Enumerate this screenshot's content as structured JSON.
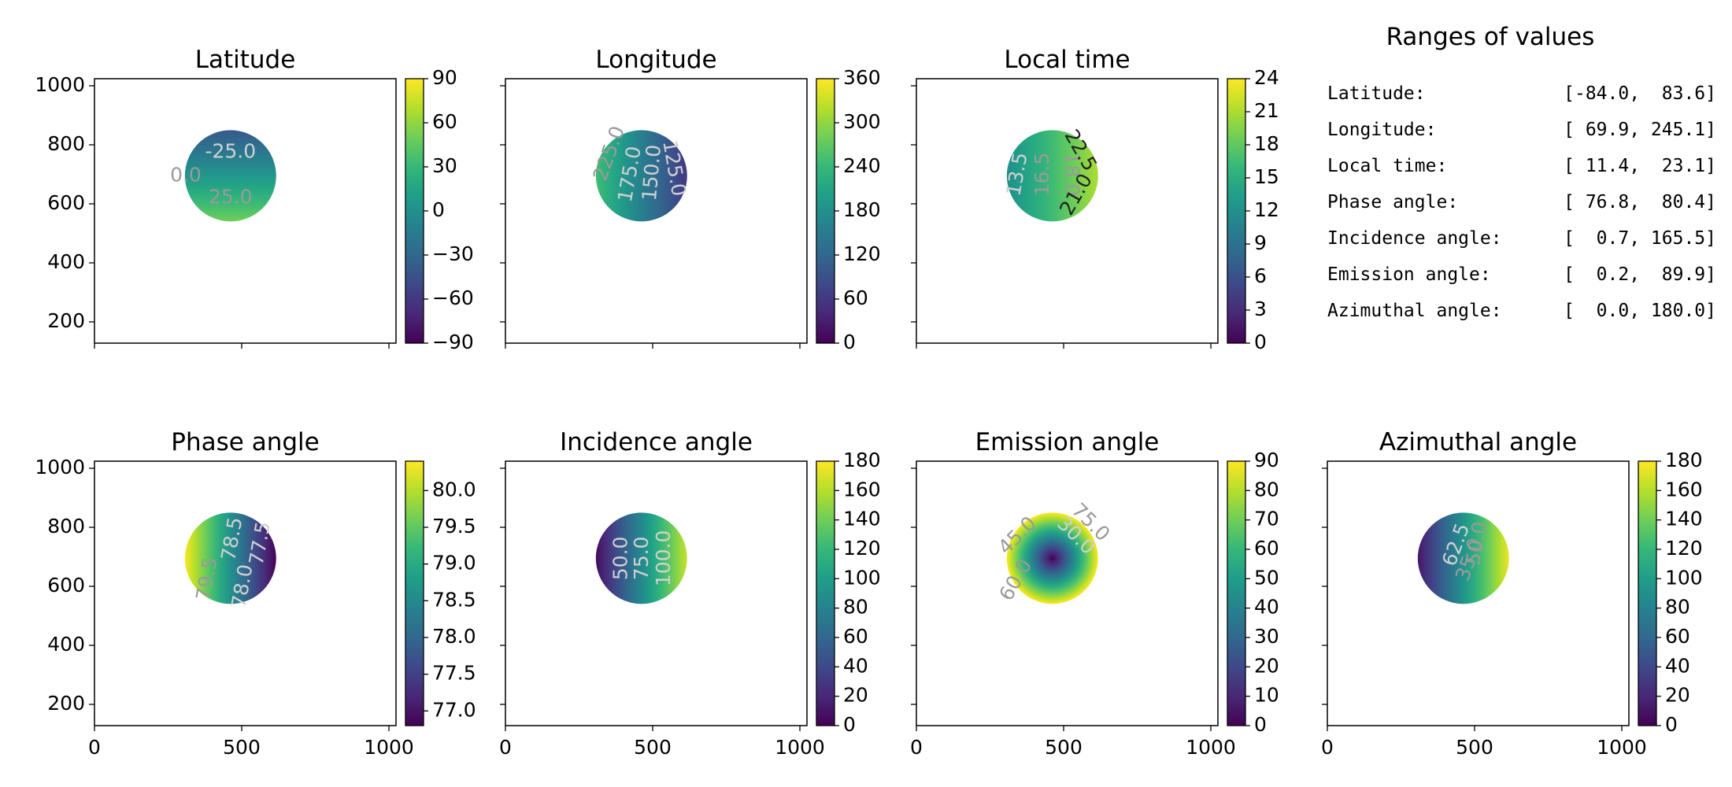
{
  "colors": {
    "viridis": [
      "#440154",
      "#482878",
      "#3e4989",
      "#31688e",
      "#26828e",
      "#1f9e89",
      "#35b779",
      "#6ece58",
      "#b5de2b",
      "#fde725"
    ],
    "contour_light": "#d0d0d0",
    "contour_mid": "#9a9a9a",
    "contour_dark": "#222222"
  },
  "chart_data": [
    {
      "type": "heatmap",
      "title": "Latitude",
      "xlim": [
        0,
        1024
      ],
      "ylim": [
        128,
        1024
      ],
      "x_ticks": [
        0,
        500,
        1000
      ],
      "show_x_tick_labels": false,
      "y_ticks": [
        200,
        400,
        600,
        800,
        1000
      ],
      "show_y_tick_labels": true,
      "disk": {
        "center": [
          462,
          695
        ],
        "radius": 155
      },
      "gradient": "vertical",
      "gradient_range": [
        -40,
        50
      ],
      "colorbar": {
        "min": -90,
        "max": 90,
        "ticks": [
          90,
          60,
          30,
          0,
          -30,
          -60,
          -90
        ],
        "tick_labels": [
          "90",
          "60",
          "30",
          "0",
          "−30",
          "−60",
          "−90"
        ]
      },
      "contour_labels": [
        {
          "text": "-25.0",
          "at": [
            462,
            775
          ],
          "tone": "light",
          "rotate": 0
        },
        {
          "text": "0.0",
          "at": [
            310,
            695
          ],
          "tone": "mid",
          "rotate": 0
        },
        {
          "text": "25.0",
          "at": [
            462,
            620
          ],
          "tone": "mid",
          "rotate": 0
        }
      ]
    },
    {
      "type": "heatmap",
      "title": "Longitude",
      "xlim": [
        0,
        1024
      ],
      "ylim": [
        128,
        1024
      ],
      "x_ticks": [
        0,
        500,
        1000
      ],
      "show_x_tick_labels": false,
      "y_ticks": [
        200,
        400,
        600,
        800,
        1000
      ],
      "show_y_tick_labels": false,
      "disk": {
        "center": [
          462,
          695
        ],
        "radius": 155
      },
      "gradient": "horizontal",
      "gradient_range": [
        250,
        60
      ],
      "colorbar": {
        "min": 0,
        "max": 360,
        "ticks": [
          360,
          300,
          240,
          180,
          120,
          60,
          0
        ],
        "tick_labels": [
          "360",
          "300",
          "240",
          "180",
          "120",
          "60",
          "0"
        ]
      },
      "contour_labels": [
        {
          "text": "225.0",
          "at": [
            355,
            770
          ],
          "tone": "mid",
          "rotate": -70
        },
        {
          "text": "175.0",
          "at": [
            425,
            700
          ],
          "tone": "light",
          "rotate": -80
        },
        {
          "text": "150.0",
          "at": [
            500,
            705
          ],
          "tone": "light",
          "rotate": -85
        },
        {
          "text": "125.0",
          "at": [
            570,
            720
          ],
          "tone": "light",
          "rotate": 80
        }
      ]
    },
    {
      "type": "heatmap",
      "title": "Local time",
      "xlim": [
        0,
        1024
      ],
      "ylim": [
        128,
        1024
      ],
      "x_ticks": [
        0,
        500,
        1000
      ],
      "show_x_tick_labels": false,
      "y_ticks": [
        200,
        400,
        600,
        800,
        1000
      ],
      "show_y_tick_labels": false,
      "disk": {
        "center": [
          462,
          695
        ],
        "radius": 155
      },
      "gradient": "horizontal",
      "gradient_range": [
        12,
        21
      ],
      "colorbar": {
        "min": 0,
        "max": 24,
        "ticks": [
          24,
          21,
          18,
          15,
          12,
          9,
          6,
          3,
          0
        ],
        "tick_labels": [
          "24",
          "21",
          "18",
          "15",
          "12",
          "9",
          "6",
          "3",
          "0"
        ]
      },
      "contour_labels": [
        {
          "text": "13.5",
          "at": [
            345,
            700
          ],
          "tone": "light",
          "rotate": -80
        },
        {
          "text": "16.5",
          "at": [
            430,
            700
          ],
          "tone": "mid",
          "rotate": -90
        },
        {
          "text": "18.0",
          "at": [
            525,
            700
          ],
          "tone": "mid",
          "rotate": 90
        },
        {
          "text": "22.5",
          "at": [
            555,
            780
          ],
          "tone": "dark",
          "rotate": 60
        },
        {
          "text": "21.0",
          "at": [
            545,
            630
          ],
          "tone": "dark",
          "rotate": -60
        }
      ]
    },
    {
      "type": "heatmap",
      "title": "Phase angle",
      "xlim": [
        0,
        1024
      ],
      "ylim": [
        128,
        1024
      ],
      "x_ticks": [
        0,
        500,
        1000
      ],
      "show_x_tick_labels": true,
      "x_tick_labels": [
        "0",
        "500",
        "1000"
      ],
      "y_ticks": [
        200,
        400,
        600,
        800,
        1000
      ],
      "show_y_tick_labels": true,
      "disk": {
        "center": [
          462,
          695
        ],
        "radius": 155
      },
      "gradient": "horizontal",
      "gradient_range": [
        80.4,
        76.8
      ],
      "colorbar": {
        "min": 76.8,
        "max": 80.4,
        "ticks": [
          80.0,
          79.5,
          79.0,
          78.5,
          78.0,
          77.5,
          77.0
        ],
        "tick_labels": [
          "80.0",
          "79.5",
          "79.0",
          "78.5",
          "78.0",
          "77.5",
          "77.0"
        ]
      },
      "contour_labels": [
        {
          "text": "79.5",
          "at": [
            385,
            625
          ],
          "tone": "mid",
          "rotate": -80
        },
        {
          "text": "78.5",
          "at": [
            470,
            760
          ],
          "tone": "light",
          "rotate": -80
        },
        {
          "text": "78.0",
          "at": [
            505,
            600
          ],
          "tone": "light",
          "rotate": -80
        },
        {
          "text": "77.5",
          "at": [
            565,
            745
          ],
          "tone": "light",
          "rotate": -80
        }
      ]
    },
    {
      "type": "heatmap",
      "title": "Incidence angle",
      "xlim": [
        0,
        1024
      ],
      "ylim": [
        128,
        1024
      ],
      "x_ticks": [
        0,
        500,
        1000
      ],
      "show_x_tick_labels": true,
      "x_tick_labels": [
        "0",
        "500",
        "1000"
      ],
      "y_ticks": [
        200,
        400,
        600,
        800,
        1000
      ],
      "show_y_tick_labels": false,
      "disk": {
        "center": [
          462,
          695
        ],
        "radius": 155
      },
      "gradient": "horizontal",
      "gradient_range": [
        5,
        165
      ],
      "colorbar": {
        "min": 0,
        "max": 180,
        "ticks": [
          180,
          160,
          140,
          120,
          100,
          80,
          60,
          40,
          20,
          0
        ],
        "tick_labels": [
          "180",
          "160",
          "140",
          "120",
          "100",
          "80",
          "60",
          "40",
          "20",
          "0"
        ]
      },
      "contour_labels": [
        {
          "text": "50.0",
          "at": [
            395,
            695
          ],
          "tone": "light",
          "rotate": -90
        },
        {
          "text": "75.0",
          "at": [
            465,
            695
          ],
          "tone": "light",
          "rotate": -90
        },
        {
          "text": "100.0",
          "at": [
            540,
            695
          ],
          "tone": "light",
          "rotate": -90
        }
      ]
    },
    {
      "type": "heatmap",
      "title": "Emission angle",
      "xlim": [
        0,
        1024
      ],
      "ylim": [
        128,
        1024
      ],
      "x_ticks": [
        0,
        500,
        1000
      ],
      "show_x_tick_labels": true,
      "x_tick_labels": [
        "0",
        "500",
        "1000"
      ],
      "y_ticks": [
        200,
        400,
        600,
        800,
        1000
      ],
      "show_y_tick_labels": false,
      "disk": {
        "center": [
          462,
          695
        ],
        "radius": 155
      },
      "gradient": "radial",
      "gradient_range": [
        0,
        90
      ],
      "colorbar": {
        "min": 0,
        "max": 90,
        "ticks": [
          90,
          80,
          70,
          60,
          50,
          40,
          30,
          20,
          10,
          0
        ],
        "tick_labels": [
          "90",
          "80",
          "70",
          "60",
          "50",
          "40",
          "30",
          "20",
          "10",
          "0"
        ]
      },
      "contour_labels": [
        {
          "text": "30.0",
          "at": [
            540,
            770
          ],
          "tone": "light",
          "rotate": 45
        },
        {
          "text": "75.0",
          "at": [
            590,
            815
          ],
          "tone": "mid",
          "rotate": 45
        },
        {
          "text": "45.0",
          "at": [
            345,
            770
          ],
          "tone": "mid",
          "rotate": -45
        },
        {
          "text": "60.0",
          "at": [
            340,
            620
          ],
          "tone": "mid",
          "rotate": -60
        }
      ]
    },
    {
      "type": "heatmap",
      "title": "Azimuthal angle",
      "xlim": [
        0,
        1024
      ],
      "ylim": [
        128,
        1024
      ],
      "x_ticks": [
        0,
        500,
        1000
      ],
      "show_x_tick_labels": true,
      "x_tick_labels": [
        "0",
        "500",
        "1000"
      ],
      "y_ticks": [
        200,
        400,
        600,
        800,
        1000
      ],
      "show_y_tick_labels": false,
      "disk": {
        "center": [
          462,
          695
        ],
        "radius": 155
      },
      "gradient": "horizontal",
      "gradient_range": [
        10,
        175
      ],
      "colorbar": {
        "min": 0,
        "max": 180,
        "ticks": [
          180,
          160,
          140,
          120,
          100,
          80,
          60,
          40,
          20,
          0
        ],
        "tick_labels": [
          "180",
          "160",
          "140",
          "120",
          "100",
          "80",
          "60",
          "40",
          "20",
          "0"
        ]
      },
      "contour_labels": [
        {
          "text": "62.5",
          "at": [
            440,
            740
          ],
          "tone": "light",
          "rotate": -70
        },
        {
          "text": "35.0",
          "at": [
            485,
            690
          ],
          "tone": "mid",
          "rotate": -70
        },
        {
          "text": "50.0",
          "at": [
            510,
            745
          ],
          "tone": "mid",
          "rotate": -80
        }
      ]
    }
  ],
  "ranges_panel": {
    "title": "Ranges of values",
    "rows": [
      {
        "label": "Latitude:",
        "value": "[-84.0,  83.6]"
      },
      {
        "label": "Longitude:",
        "value": "[ 69.9, 245.1]"
      },
      {
        "label": "Local time:",
        "value": "[ 11.4,  23.1]"
      },
      {
        "label": "Phase angle:",
        "value": "[ 76.8,  80.4]"
      },
      {
        "label": "Incidence angle:",
        "value": "[  0.7, 165.5]"
      },
      {
        "label": "Emission angle:",
        "value": "[  0.2,  89.9]"
      },
      {
        "label": "Azimuthal angle:",
        "value": "[  0.0, 180.0]"
      }
    ]
  }
}
